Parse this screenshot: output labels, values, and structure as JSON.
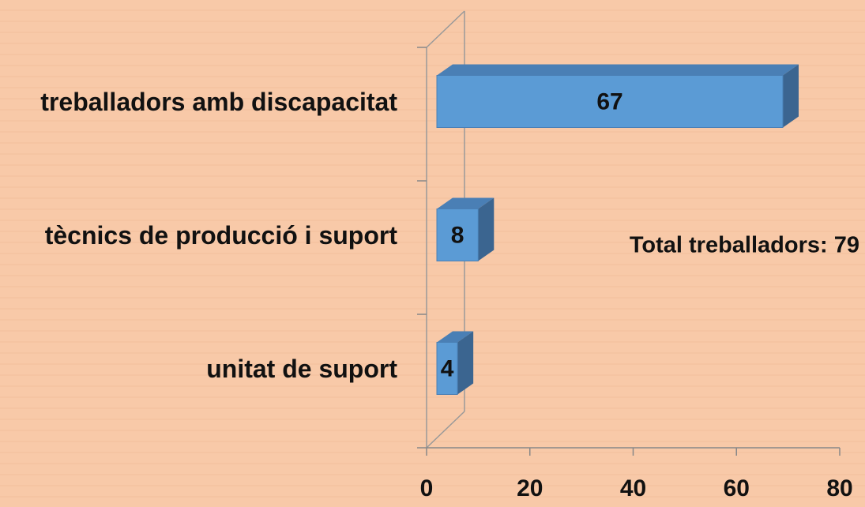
{
  "chart_data": {
    "type": "bar",
    "orientation": "horizontal",
    "categories": [
      "treballadors amb discapacitat",
      "tècnics de producció i suport",
      "unitat de suport"
    ],
    "values": [
      67,
      8,
      4
    ],
    "color": "#5b9bd5",
    "xlim": [
      0,
      80
    ],
    "xticks": [
      0,
      20,
      40,
      60,
      80
    ],
    "annotation": "Total treballadors:  79"
  }
}
